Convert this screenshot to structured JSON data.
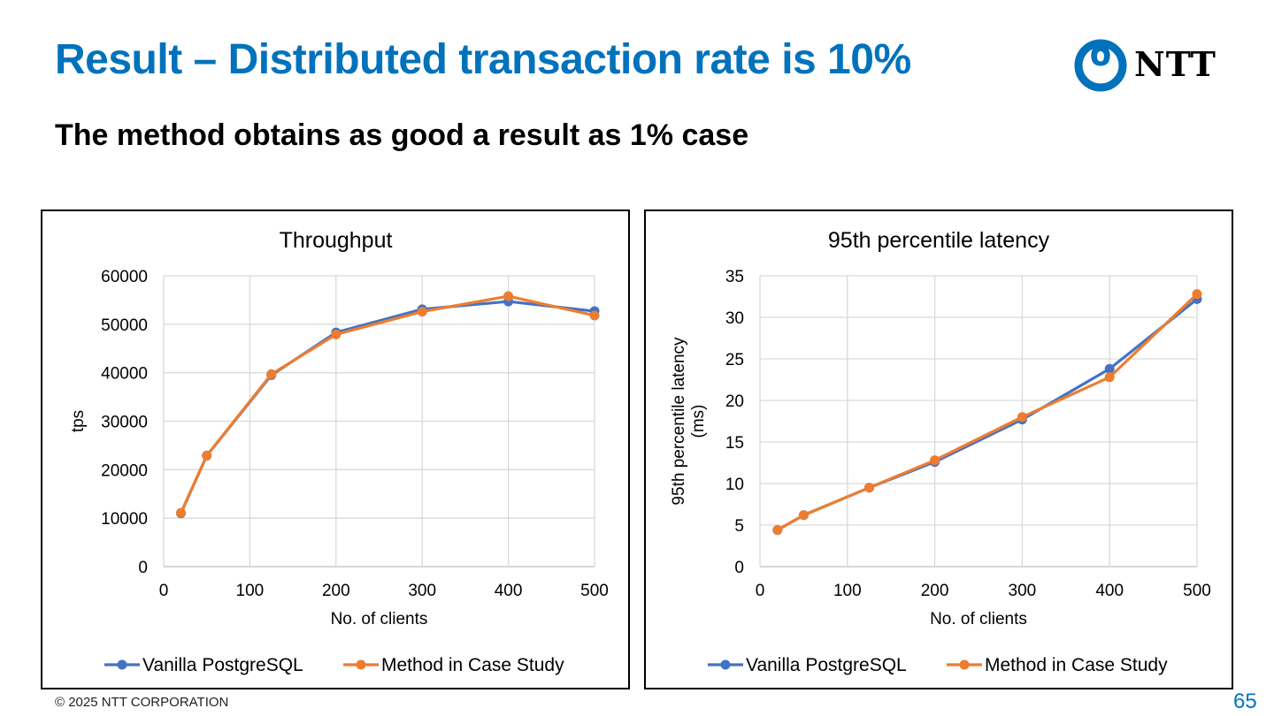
{
  "slide": {
    "title": "Result – Distributed transaction rate is 10%",
    "subtitle": "The method obtains as good a result as 1% case",
    "logo": {
      "icon": "ntt-logo-icon",
      "text": "NTT",
      "color": "#0072bc"
    },
    "footer": "© 2025 NTT CORPORATION",
    "page_number": "65"
  },
  "chart_data": [
    {
      "type": "line",
      "title": "Throughput",
      "xlabel": "No. of clients",
      "ylabel": "tps",
      "x": [
        20,
        50,
        125,
        200,
        300,
        400,
        500
      ],
      "xlim": [
        0,
        500
      ],
      "xticks": [
        "0",
        "100",
        "200",
        "300",
        "400",
        "500"
      ],
      "ylim": [
        0,
        60000
      ],
      "yticks": [
        "0",
        "10000",
        "20000",
        "30000",
        "40000",
        "50000",
        "60000"
      ],
      "grid": true,
      "legend": "bottom",
      "series": [
        {
          "name": "Vanilla PostgreSQL",
          "color": "#4472c4",
          "values": [
            11000,
            22900,
            39500,
            48300,
            53100,
            54700,
            52700
          ]
        },
        {
          "name": "Method in Case Study",
          "color": "#ed7d31",
          "values": [
            11100,
            22900,
            39700,
            47900,
            52600,
            55800,
            51800
          ]
        }
      ]
    },
    {
      "type": "line",
      "title": "95th percentile latency",
      "xlabel": "No. of clients",
      "ylabel": "95th percentile latency (ms)",
      "ylabel_lines": [
        "95th percentile latency",
        "(ms)"
      ],
      "x": [
        20,
        50,
        125,
        200,
        300,
        400,
        500
      ],
      "xlim": [
        0,
        500
      ],
      "xticks": [
        "0",
        "100",
        "200",
        "300",
        "400",
        "500"
      ],
      "ylim": [
        0,
        35
      ],
      "yticks": [
        "0",
        "5",
        "10",
        "15",
        "20",
        "25",
        "30",
        "35"
      ],
      "grid": true,
      "legend": "bottom",
      "series": [
        {
          "name": "Vanilla PostgreSQL",
          "color": "#4472c4",
          "values": [
            4.4,
            6.2,
            9.5,
            12.6,
            17.7,
            23.8,
            32.2
          ]
        },
        {
          "name": "Method in Case Study",
          "color": "#ed7d31",
          "values": [
            4.4,
            6.2,
            9.5,
            12.8,
            18.0,
            22.8,
            32.8
          ]
        }
      ]
    }
  ]
}
